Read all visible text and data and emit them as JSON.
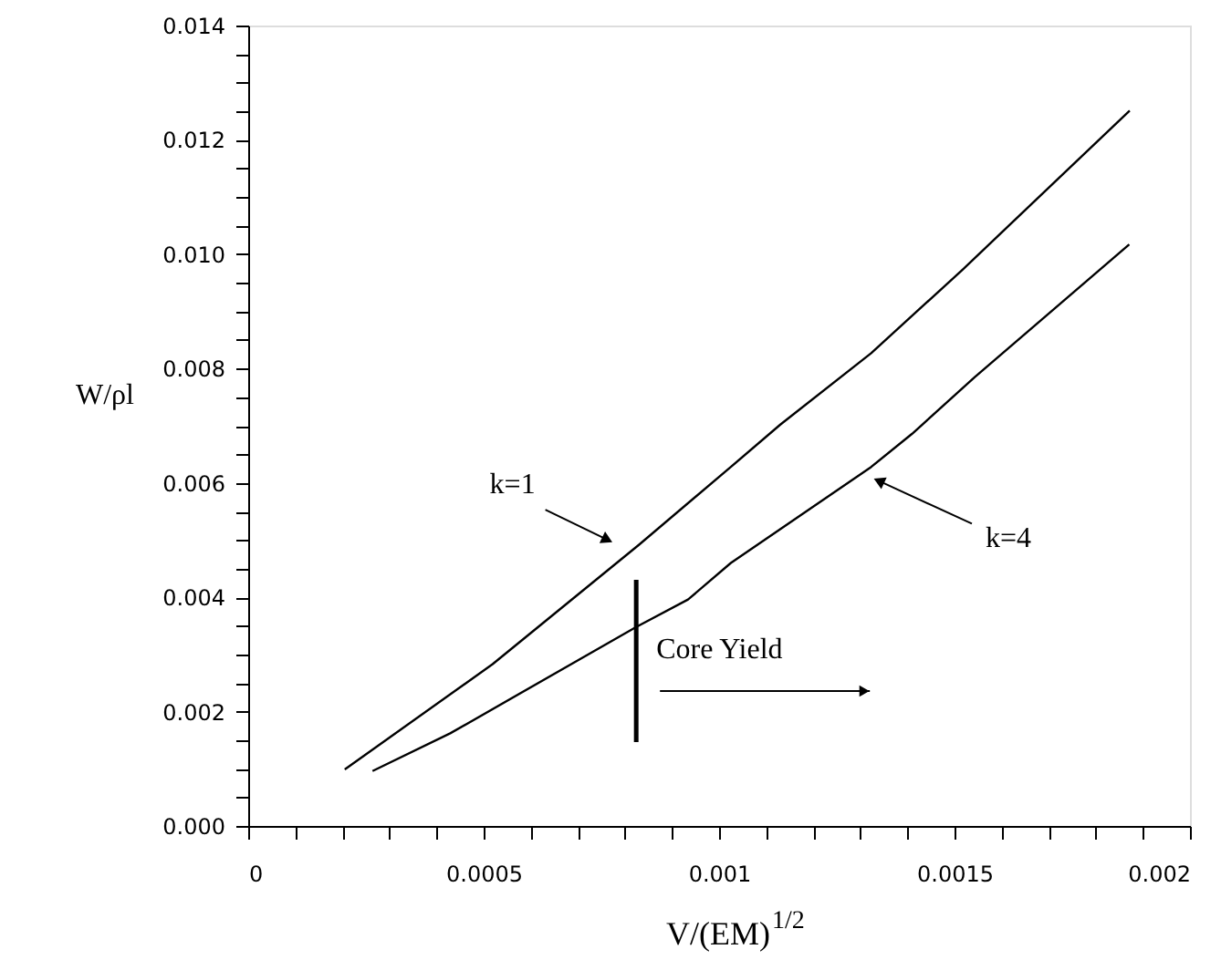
{
  "chart_data": {
    "type": "line",
    "xlabel": "V/(EM)$^{1/2}$",
    "ylabel": "W/ρl",
    "xlim": [
      0,
      0.002
    ],
    "ylim": [
      0,
      0.014
    ],
    "xticks": [
      0,
      {
        "value": 0.0001,
        "label": null
      },
      {
        "value": 0.0002,
        "label": null
      },
      {
        "value": 0.0003,
        "label": null
      },
      {
        "value": 0.0004,
        "label": null
      },
      0.0005,
      {
        "value": 0.0006,
        "label": null
      },
      {
        "value": 0.0007,
        "label": null
      },
      {
        "value": 0.0008,
        "label": null
      },
      {
        "value": 0.0009,
        "label": null
      },
      0.001,
      {
        "value": 0.0011,
        "label": null
      },
      {
        "value": 0.0012,
        "label": null
      },
      {
        "value": 0.0013,
        "label": null
      },
      {
        "value": 0.0014,
        "label": null
      },
      0.0015,
      {
        "value": 0.0016,
        "label": null
      },
      {
        "value": 0.0017,
        "label": null
      },
      {
        "value": 0.0018,
        "label": null
      },
      {
        "value": 0.0019,
        "label": null
      },
      0.002
    ],
    "yticks": [
      {
        "value": 0,
        "label": "0.000"
      },
      {
        "value": 0.0005,
        "label": null
      },
      {
        "value": 0.001,
        "label": null
      },
      {
        "value": 0.0015,
        "label": null
      },
      {
        "value": 0.002,
        "label": "0.002"
      },
      {
        "value": 0.0025,
        "label": null
      },
      {
        "value": 0.003,
        "label": null
      },
      {
        "value": 0.0035,
        "label": null
      },
      {
        "value": 0.004,
        "label": "0.004"
      },
      {
        "value": 0.0045,
        "label": null
      },
      {
        "value": 0.005,
        "label": null
      },
      {
        "value": 0.0055,
        "label": null
      },
      {
        "value": 0.006,
        "label": "0.006"
      },
      {
        "value": 0.0065,
        "label": null
      },
      {
        "value": 0.007,
        "label": null
      },
      {
        "value": 0.0075,
        "label": null
      },
      {
        "value": 0.008,
        "label": "0.008"
      },
      {
        "value": 0.0085,
        "label": null
      },
      {
        "value": 0.009,
        "label": null
      },
      {
        "value": 0.0095,
        "label": null
      },
      {
        "value": 0.01,
        "label": "0.010"
      },
      {
        "value": 0.0105,
        "label": null
      },
      {
        "value": 0.011,
        "label": null
      },
      {
        "value": 0.0115,
        "label": null
      },
      {
        "value": 0.012,
        "label": "0.012"
      },
      {
        "value": 0.0125,
        "label": null
      },
      {
        "value": 0.013,
        "label": null
      },
      {
        "value": 0.0135,
        "label": null
      },
      {
        "value": 0.014,
        "label": "0.014"
      }
    ],
    "grid": false,
    "line_style": "solid",
    "series": [
      {
        "color": "#000000",
        "x": [
          0.000205,
          0.000519,
          0.00083,
          0.001025,
          0.00113,
          0.001323,
          0.001517,
          0.001872
        ],
        "values": [
          0.00099,
          0.00283,
          0.00492,
          0.00628,
          0.00702,
          0.00827,
          0.00973,
          0.01251
        ]
      },
      {
        "color": "#000000",
        "x": [
          0.000264,
          0.000429,
          0.000824,
          0.000934,
          0.001025,
          0.001323,
          0.00141,
          0.001543,
          0.001871
        ],
        "values": [
          0.00096,
          0.00162,
          0.00348,
          0.00396,
          0.0046,
          0.00628,
          0.00686,
          0.00785,
          0.01017
        ]
      }
    ],
    "annotations": [
      {
        "text": "k=1",
        "x": 0.000759,
        "y": 0.00502
      },
      {
        "text": "k=4",
        "x": 0.001343,
        "y": 0.00602
      }
    ],
    "ref_lines": [
      {
        "axis": "x",
        "value": 0.000824,
        "label": "Core Yield"
      }
    ]
  }
}
